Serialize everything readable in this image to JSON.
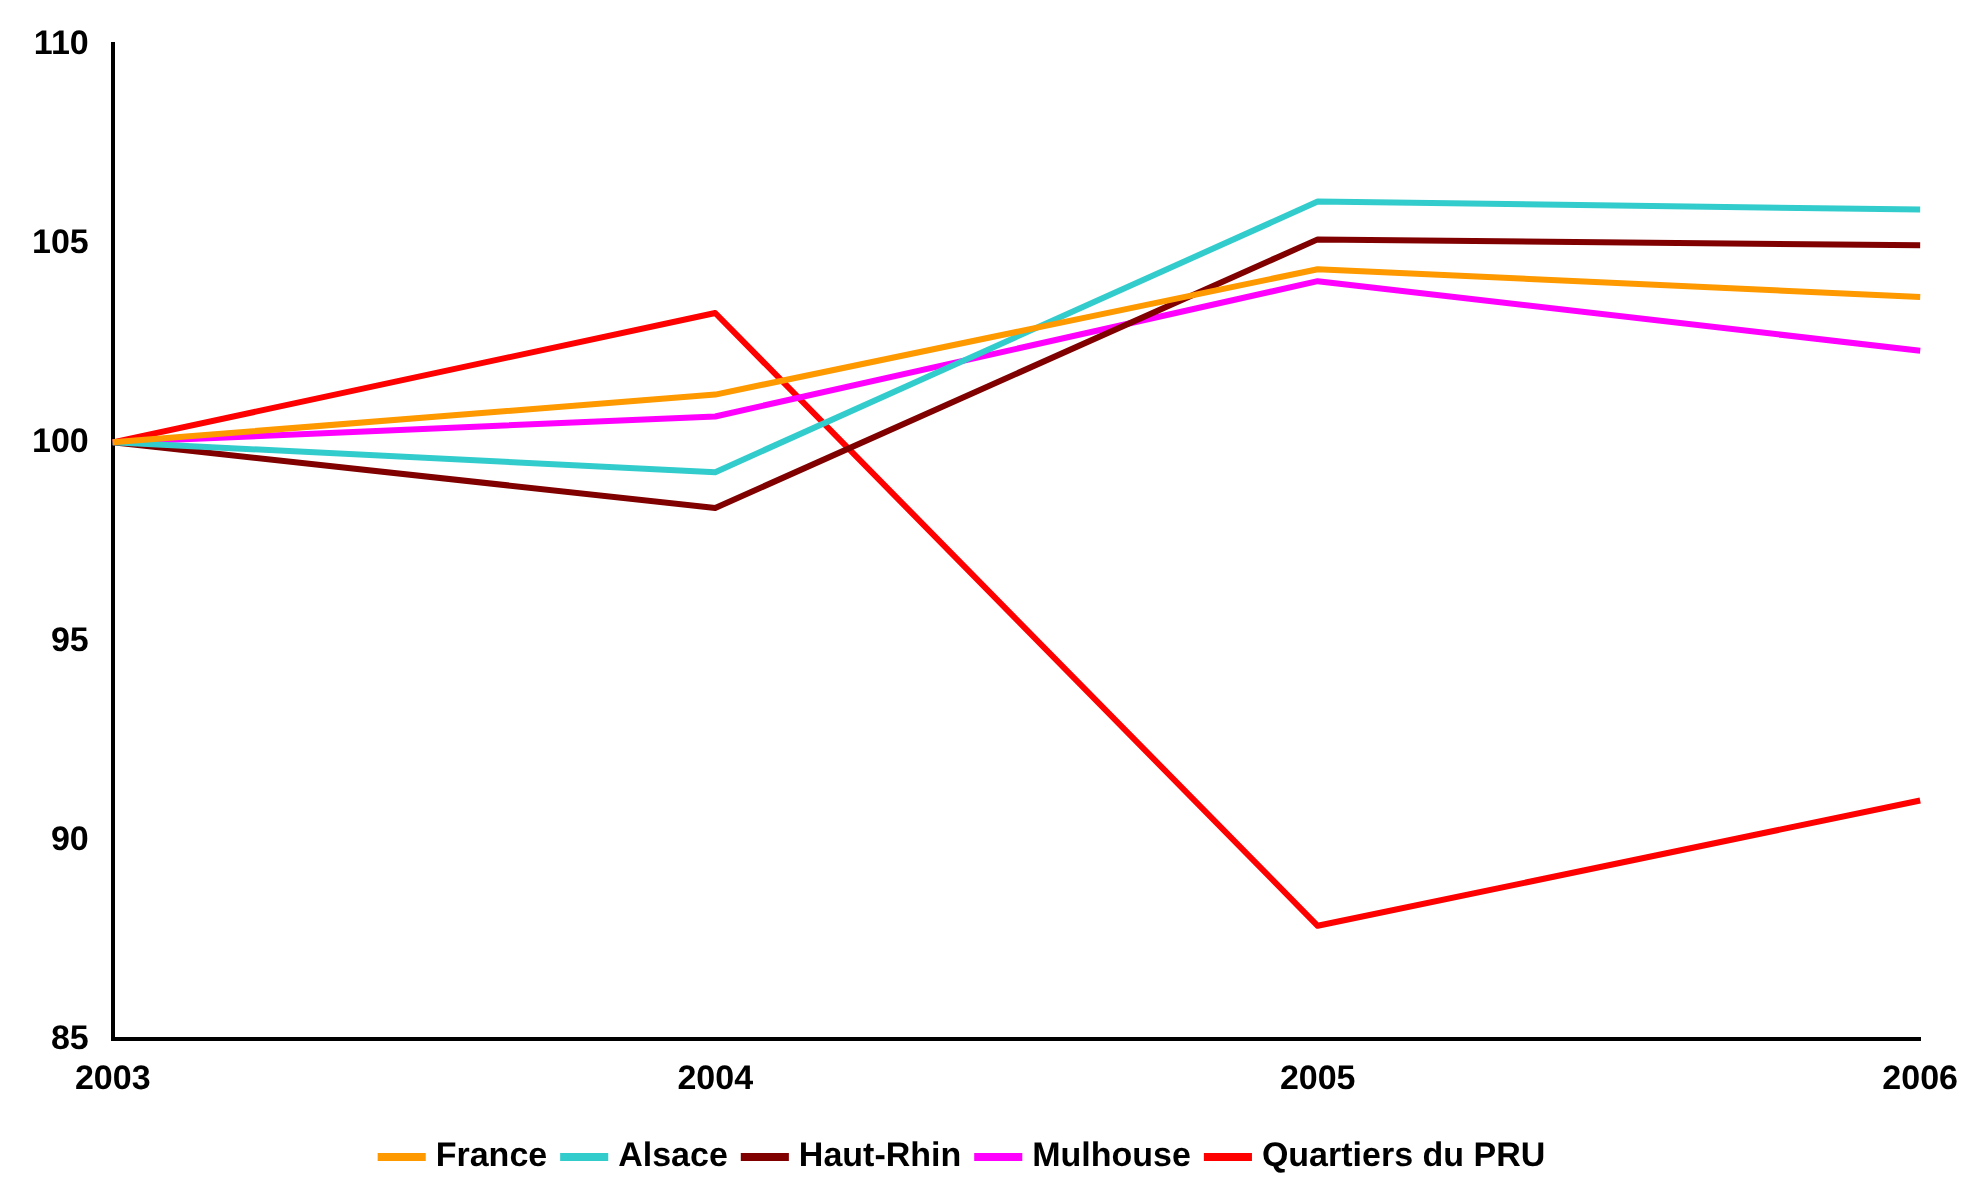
{
  "chart_data": {
    "type": "line",
    "categories": [
      "2003",
      "2004",
      "2005",
      "2006"
    ],
    "series": [
      {
        "name": "France",
        "color": "#ff9900",
        "values": [
          100,
          101.2,
          104.35,
          103.65
        ]
      },
      {
        "name": "Alsace",
        "color": "#33cccc",
        "values": [
          100,
          99.25,
          106.05,
          105.85
        ]
      },
      {
        "name": "Haut-Rhin",
        "color": "#800000",
        "values": [
          100,
          98.35,
          105.1,
          104.95
        ]
      },
      {
        "name": "Mulhouse",
        "color": "#ff00ff",
        "values": [
          100,
          100.65,
          104.05,
          102.3
        ]
      },
      {
        "name": "Quartiers du PRU",
        "color": "#ff0000",
        "values": [
          100,
          103.25,
          87.85,
          91
        ]
      }
    ],
    "ylim": [
      85,
      110
    ],
    "yticks": [
      85,
      90,
      95,
      100,
      105,
      110
    ],
    "grid": false,
    "legend": "bottom",
    "marker": "none",
    "line_style": "solid"
  }
}
